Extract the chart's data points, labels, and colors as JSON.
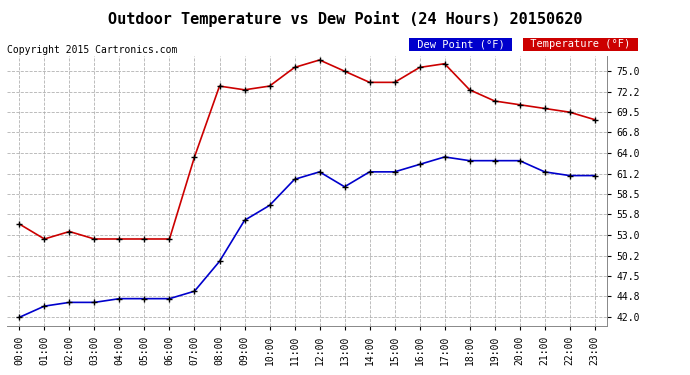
{
  "title": "Outdoor Temperature vs Dew Point (24 Hours) 20150620",
  "copyright": "Copyright 2015 Cartronics.com",
  "x_labels": [
    "00:00",
    "01:00",
    "02:00",
    "03:00",
    "04:00",
    "05:00",
    "06:00",
    "07:00",
    "08:00",
    "09:00",
    "10:00",
    "11:00",
    "12:00",
    "13:00",
    "14:00",
    "15:00",
    "16:00",
    "17:00",
    "18:00",
    "19:00",
    "20:00",
    "21:00",
    "22:00",
    "23:00"
  ],
  "temperature": [
    54.5,
    52.5,
    53.5,
    52.5,
    52.5,
    52.5,
    52.5,
    63.5,
    73.0,
    72.5,
    73.0,
    75.5,
    76.5,
    75.0,
    73.5,
    73.5,
    75.5,
    76.0,
    72.5,
    71.0,
    70.5,
    70.0,
    69.5,
    68.5
  ],
  "dew_point": [
    42.0,
    43.5,
    44.0,
    44.0,
    44.5,
    44.5,
    44.5,
    45.5,
    49.5,
    55.0,
    57.0,
    60.5,
    61.5,
    59.5,
    61.5,
    61.5,
    62.5,
    63.5,
    63.0,
    63.0,
    63.0,
    61.5,
    61.0,
    61.0
  ],
  "temp_color": "#cc0000",
  "dew_color": "#0000cc",
  "marker_color": "#000000",
  "background_color": "#ffffff",
  "grid_color": "#aaaaaa",
  "yticks": [
    42.0,
    44.8,
    47.5,
    50.2,
    53.0,
    55.8,
    58.5,
    61.2,
    64.0,
    66.8,
    69.5,
    72.2,
    75.0
  ],
  "ylim_low": 40.8,
  "ylim_high": 77.0,
  "title_fontsize": 11,
  "copyright_fontsize": 7,
  "tick_fontsize": 7,
  "legend_dew_label": "Dew Point (°F)",
  "legend_temp_label": "Temperature (°F)",
  "legend_dew_color": "#0000cc",
  "legend_temp_color": "#cc0000"
}
